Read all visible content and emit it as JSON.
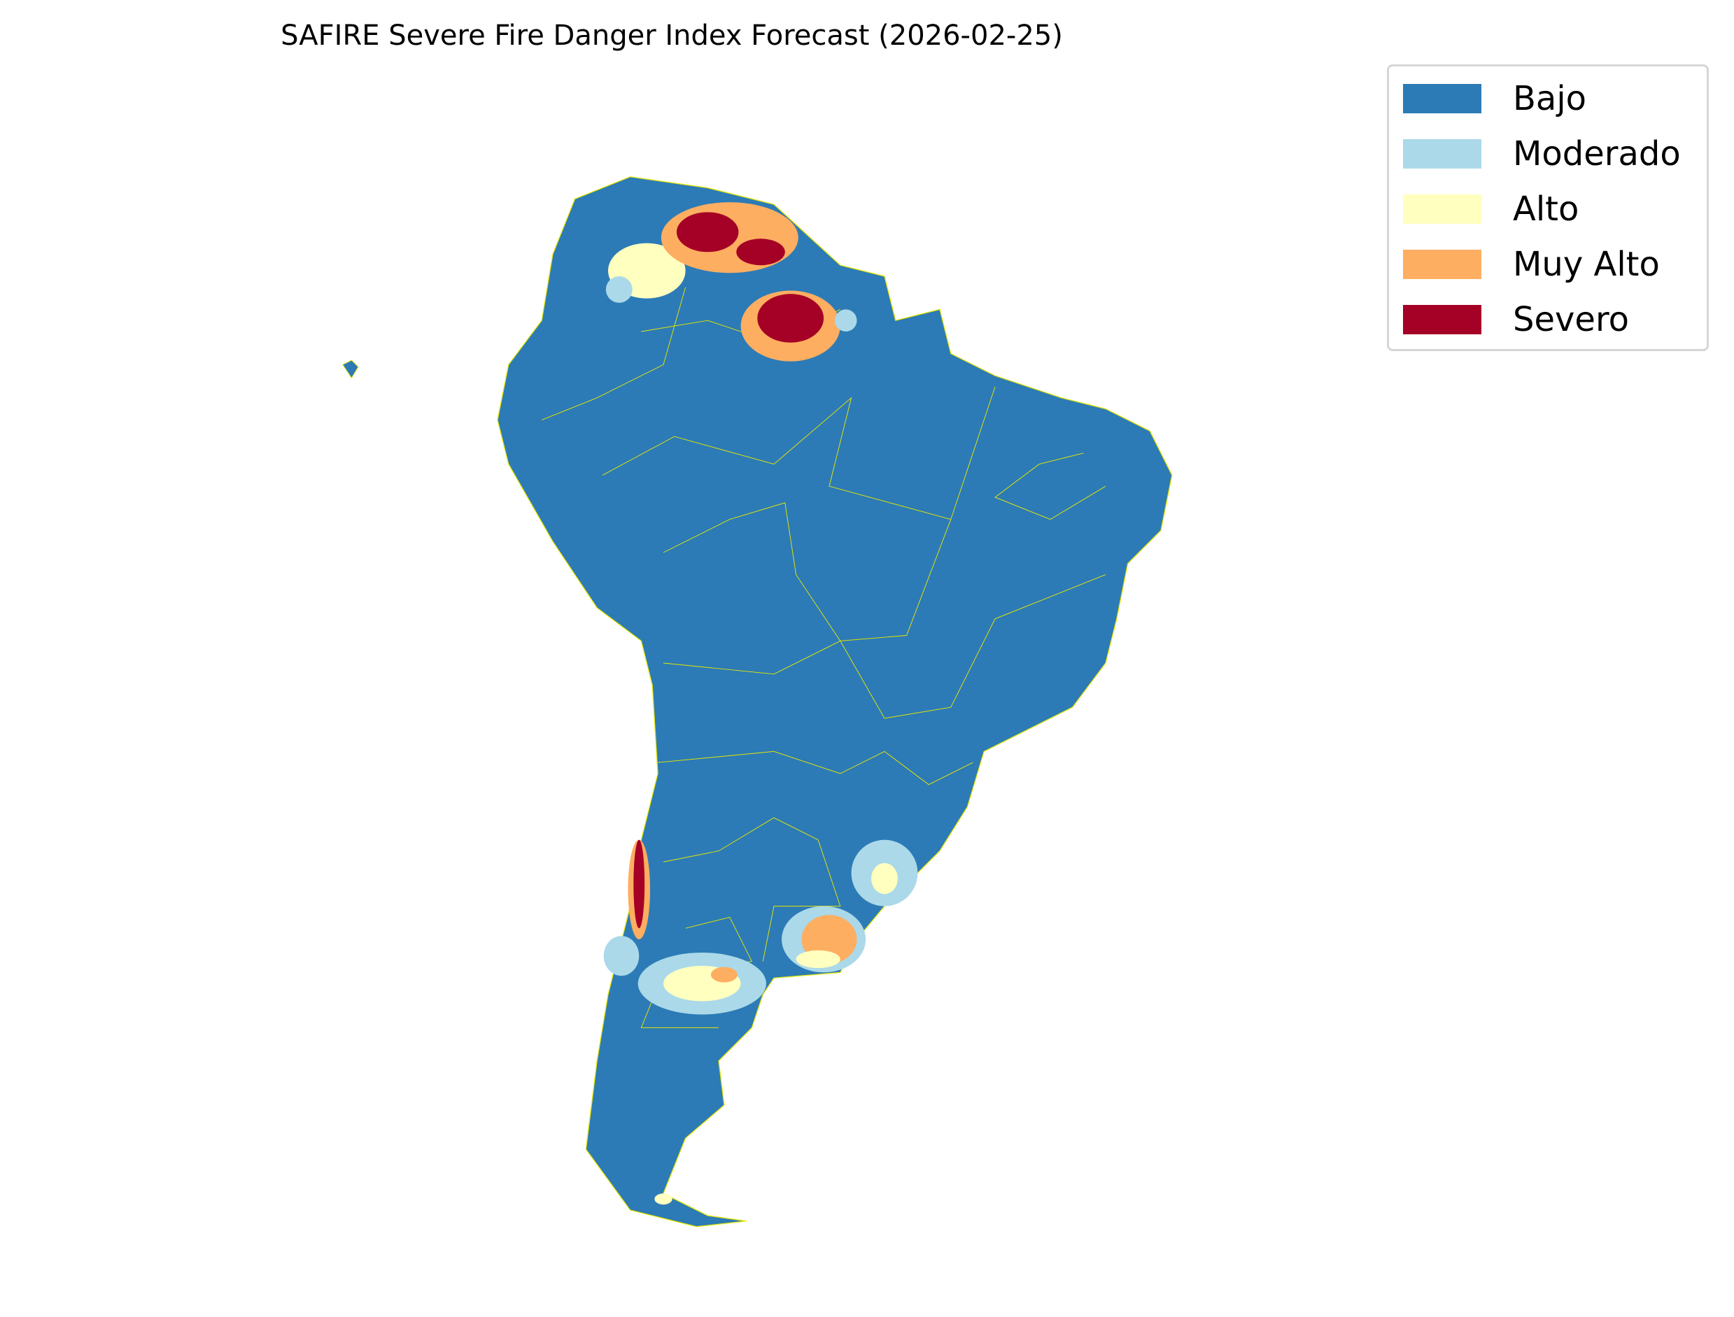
{
  "title": "SAFIRE Severe Fire Danger Index Forecast (2026-02-25)",
  "legend": [
    {
      "label": "Bajo",
      "color": "#2c7bb6"
    },
    {
      "label": "Moderado",
      "color": "#abd9e9"
    },
    {
      "label": "Alto",
      "color": "#ffffbf"
    },
    {
      "label": "Muy Alto",
      "color": "#fdae61"
    },
    {
      "label": "Severo",
      "color": "#a50026"
    }
  ],
  "border_color": "#e6e600"
}
